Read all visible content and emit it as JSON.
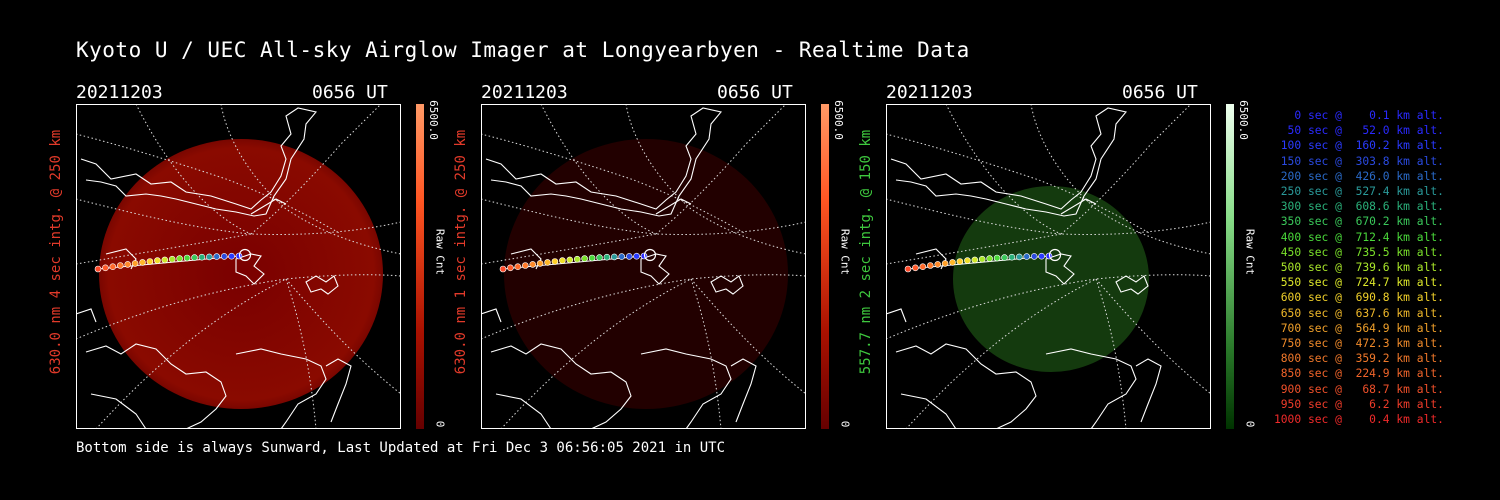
{
  "title": "Kyoto U / UEC All-sky Airglow Imager at Longyearbyen - Realtime Data",
  "footer": "Bottom side is always Sunward, Last Updated at Fri Dec  3 06:56:05 2021 in UTC",
  "panels": [
    {
      "date": "20211203",
      "time": "0656 UT",
      "side_label": "630.0 nm 4 sec intg. @ 250 km",
      "label_color": "#e23a2a",
      "colorbar_max": "6500.0",
      "colorbar_min": "0",
      "colorbar_label": "Raw Cnt",
      "bar_top_color": "#ff9966",
      "bar_bottom_color": "#660000"
    },
    {
      "date": "20211203",
      "time": "0656 UT",
      "side_label": "630.0 nm 1 sec intg. @ 250 km",
      "label_color": "#e23a2a",
      "colorbar_max": "6500.0",
      "colorbar_min": "0",
      "colorbar_label": "Raw Cnt",
      "bar_top_color": "#ff9966",
      "bar_bottom_color": "#660000"
    },
    {
      "date": "20211203",
      "time": "0656 UT",
      "side_label": "557.7 nm 2 sec intg. @ 150 km",
      "label_color": "#3ec83e",
      "colorbar_max": "6500.0",
      "colorbar_min": "0",
      "colorbar_label": "Raw Cnt",
      "bar_top_color": "#ccffcc",
      "bar_bottom_color": "#003300"
    }
  ],
  "legend": [
    {
      "text": "   0 sec @    0.1 km alt.",
      "color": "#2a2aff"
    },
    {
      "text": "  50 sec @   52.0 km alt.",
      "color": "#2a2aff"
    },
    {
      "text": " 100 sec @  160.2 km alt.",
      "color": "#2a3aff"
    },
    {
      "text": " 150 sec @  303.8 km alt.",
      "color": "#2a4ae0"
    },
    {
      "text": " 200 sec @  426.0 km alt.",
      "color": "#2a6ac8"
    },
    {
      "text": " 250 sec @  527.4 km alt.",
      "color": "#2a9a9a"
    },
    {
      "text": " 300 sec @  608.6 km alt.",
      "color": "#2ab07a"
    },
    {
      "text": " 350 sec @  670.2 km alt.",
      "color": "#3ac85a"
    },
    {
      "text": " 400 sec @  712.4 km alt.",
      "color": "#4ad83a"
    },
    {
      "text": " 450 sec @  735.5 km alt.",
      "color": "#7ae02a"
    },
    {
      "text": " 500 sec @  739.6 km alt.",
      "color": "#aae82a"
    },
    {
      "text": " 550 sec @  724.7 km alt.",
      "color": "#dde82a"
    },
    {
      "text": " 600 sec @  690.8 km alt.",
      "color": "#f0d02a"
    },
    {
      "text": " 650 sec @  637.6 km alt.",
      "color": "#f0b82a"
    },
    {
      "text": " 700 sec @  564.9 km alt.",
      "color": "#f0a02a"
    },
    {
      "text": " 750 sec @  472.3 km alt.",
      "color": "#f08a2a"
    },
    {
      "text": " 800 sec @  359.2 km alt.",
      "color": "#f0782a"
    },
    {
      "text": " 850 sec @  224.9 km alt.",
      "color": "#f0642a"
    },
    {
      "text": " 900 sec @   68.7 km alt.",
      "color": "#f0502a"
    },
    {
      "text": " 950 sec @    6.2 km alt.",
      "color": "#f03c2a"
    },
    {
      "text": "1000 sec @    0.4 km alt.",
      "color": "#f02a2a"
    }
  ],
  "colors": {
    "glow_red": "#8a0000",
    "glow_red_dim": "#2a0000",
    "glow_green": "#1a4a12"
  }
}
